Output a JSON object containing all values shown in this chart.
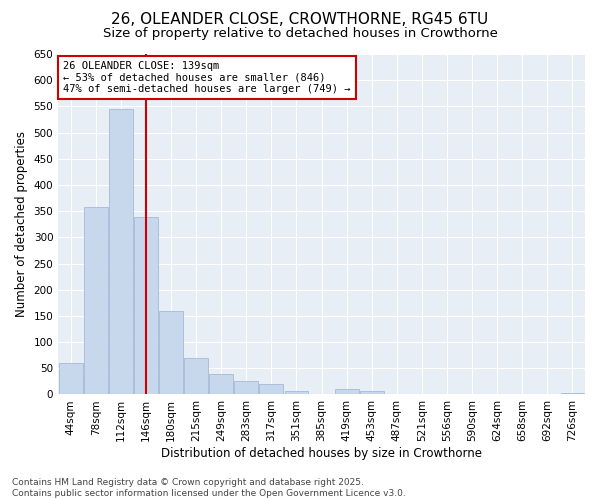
{
  "title_line1": "26, OLEANDER CLOSE, CROWTHORNE, RG45 6TU",
  "title_line2": "Size of property relative to detached houses in Crowthorne",
  "xlabel": "Distribution of detached houses by size in Crowthorne",
  "ylabel": "Number of detached properties",
  "categories": [
    "44sqm",
    "78sqm",
    "112sqm",
    "146sqm",
    "180sqm",
    "215sqm",
    "249sqm",
    "283sqm",
    "317sqm",
    "351sqm",
    "385sqm",
    "419sqm",
    "453sqm",
    "487sqm",
    "521sqm",
    "556sqm",
    "590sqm",
    "624sqm",
    "658sqm",
    "692sqm",
    "726sqm"
  ],
  "values": [
    60,
    357,
    545,
    338,
    160,
    70,
    40,
    25,
    20,
    7,
    0,
    10,
    7,
    0,
    0,
    0,
    0,
    0,
    0,
    0,
    2
  ],
  "bar_color": "#c8d8ec",
  "bar_edge_color": "#9ab4d0",
  "vline_x_index": 3,
  "vline_color": "#cc0000",
  "annotation_text": "26 OLEANDER CLOSE: 139sqm\n← 53% of detached houses are smaller (846)\n47% of semi-detached houses are larger (749) →",
  "annotation_box_color": "#ffffff",
  "annotation_box_edge": "#cc0000",
  "ylim": [
    0,
    650
  ],
  "yticks": [
    0,
    50,
    100,
    150,
    200,
    250,
    300,
    350,
    400,
    450,
    500,
    550,
    600,
    650
  ],
  "fig_background": "#ffffff",
  "plot_background": "#e8eef5",
  "grid_color": "#ffffff",
  "footer_line1": "Contains HM Land Registry data © Crown copyright and database right 2025.",
  "footer_line2": "Contains public sector information licensed under the Open Government Licence v3.0.",
  "title_fontsize": 11,
  "subtitle_fontsize": 9.5,
  "axis_label_fontsize": 8.5,
  "tick_fontsize": 7.5,
  "annotation_fontsize": 7.5,
  "footer_fontsize": 6.5
}
